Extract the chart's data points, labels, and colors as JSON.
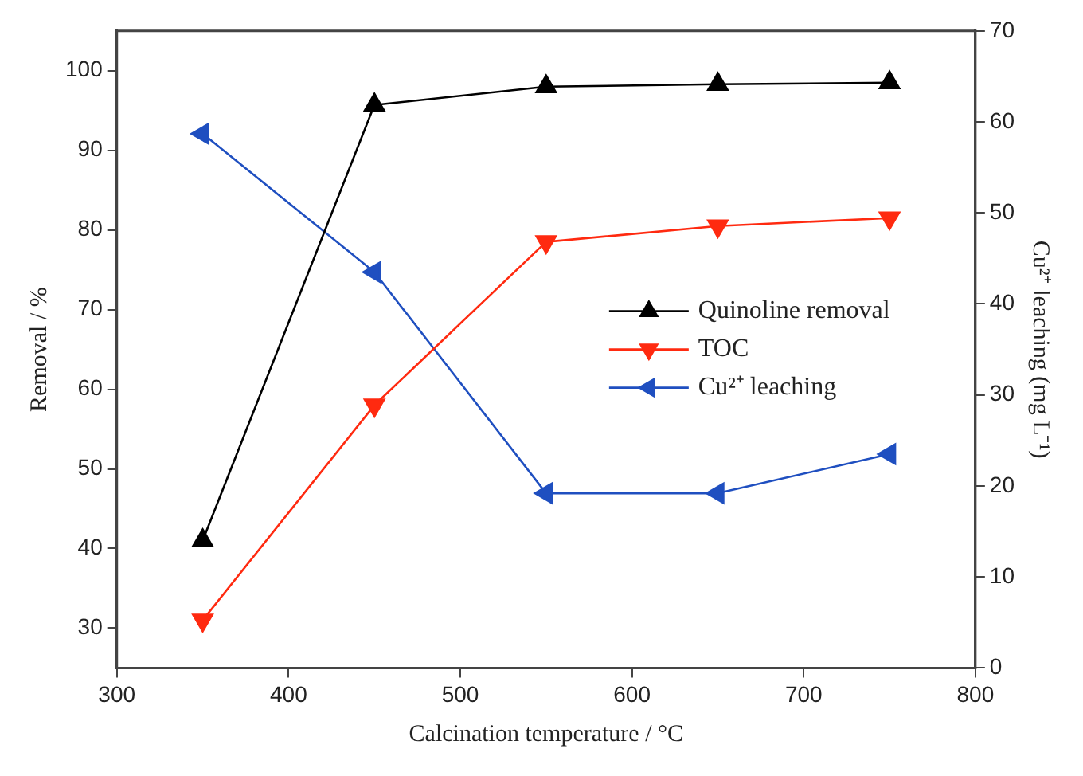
{
  "chart_data": {
    "type": "line",
    "xlabel": "Calcination temperature / °C",
    "ylabel": "Removal / %",
    "y2label": "Cu²⁺ leaching (mg L⁻¹)",
    "x": [
      350,
      450,
      550,
      650,
      750
    ],
    "xlim": [
      300,
      800
    ],
    "xticks": [
      300,
      400,
      500,
      600,
      700,
      800
    ],
    "ylim": [
      25,
      105
    ],
    "yticks": [
      30,
      40,
      50,
      60,
      70,
      80,
      90,
      100
    ],
    "y2lim": [
      0,
      70
    ],
    "y2ticks": [
      0,
      10,
      20,
      30,
      40,
      50,
      60,
      70
    ],
    "legend": "right",
    "grid": false,
    "series": [
      {
        "name": "Quinoline removal",
        "color": "#000000",
        "marker": "triangle",
        "values": [
          41,
          95.7,
          98,
          98.3,
          98.5
        ]
      },
      {
        "name": "TOC",
        "color": "#ff2a10",
        "marker": "triangle",
        "values": [
          31,
          58,
          78.5,
          80.5,
          81.5
        ]
      },
      {
        "name": "Cu²⁺ leaching",
        "color": "#1f4fc0",
        "marker": "triangle",
        "axis": "y2",
        "values": [
          58.7,
          43.5,
          19.2,
          19.2,
          23.5
        ]
      }
    ]
  }
}
